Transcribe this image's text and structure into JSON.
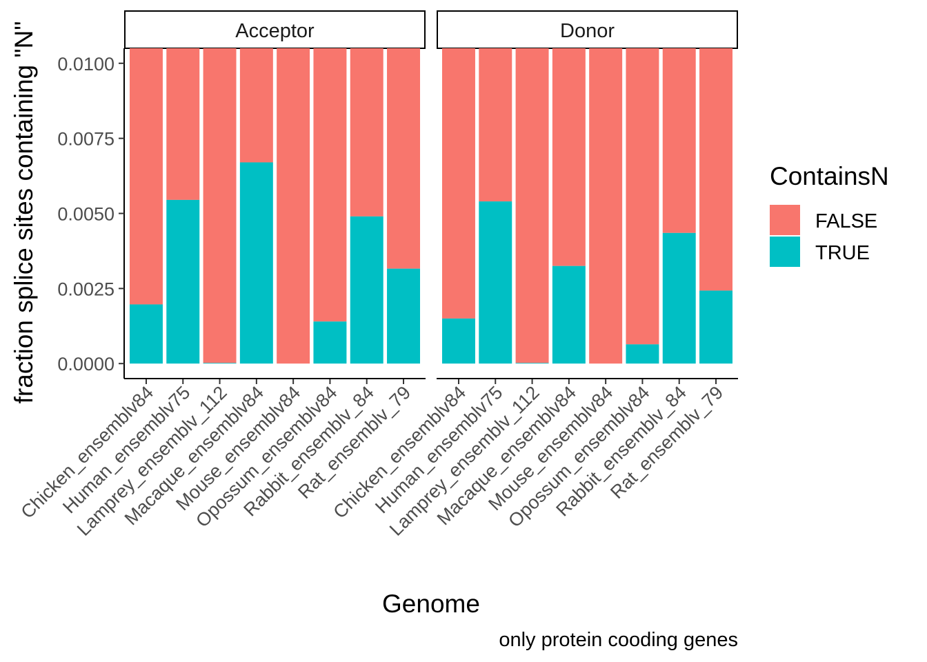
{
  "chart_data": {
    "type": "bar",
    "stacked": true,
    "facets": [
      "Acceptor",
      "Donor"
    ],
    "categories": [
      "Chicken_ensemblv84",
      "Human_ensemblv75",
      "Lamprey_ensemblv_112",
      "Macaque_ensemblv84",
      "Mouse_ensemblv84",
      "Opossum_ensemblv84",
      "Rabbit_ensemblv_84",
      "Rat_ensemblv_79"
    ],
    "series": [
      {
        "name": "TRUE",
        "color": "#00BFC4",
        "values": {
          "Acceptor": [
            0.00197,
            0.00545,
            2e-05,
            0.0067,
            0.0,
            0.0014,
            0.0049,
            0.00316
          ],
          "Donor": [
            0.0015,
            0.0054,
            2e-05,
            0.00325,
            0.0,
            0.00064,
            0.00435,
            0.00243
          ]
        }
      },
      {
        "name": "FALSE",
        "color": "#F8766D",
        "note_total": 1
      }
    ],
    "ylabel": "fraction splice sites containing \"N\"",
    "xlabel": "Genome",
    "ylim": [
      -0.0005,
      0.0105
    ],
    "yticks": [
      "0.0000",
      "0.0025",
      "0.0050",
      "0.0075",
      "0.0100"
    ],
    "ytick_values": [
      0,
      0.0025,
      0.005,
      0.0075,
      0.01
    ],
    "legend": {
      "title": "ContainsN",
      "position": "right",
      "items": [
        {
          "label": "FALSE",
          "color": "#F8766D"
        },
        {
          "label": "TRUE",
          "color": "#00BFC4"
        }
      ]
    },
    "caption": "only protein cooding genes",
    "grid": false
  }
}
